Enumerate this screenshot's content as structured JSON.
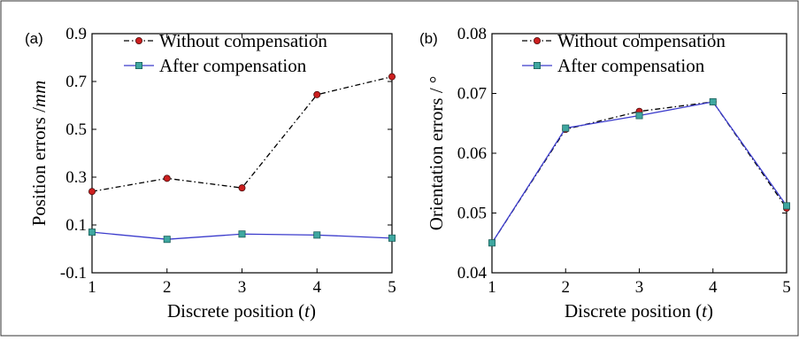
{
  "chart_data": [
    {
      "panel_label": "(a)",
      "type": "line",
      "xlabel_prefix": "Discrete position (",
      "xlabel_var": "t",
      "xlabel_suffix": ")",
      "ylabel_prefix": "Position errors /",
      "ylabel_unit": "mm",
      "xlim": [
        1,
        5
      ],
      "ylim": [
        -0.1,
        0.9
      ],
      "x_ticks": [
        "1",
        "2",
        "3",
        "4",
        "5"
      ],
      "y_ticks": [
        "-0.1",
        "0.1",
        "0.3",
        "0.5",
        "0.7",
        "0.9"
      ],
      "x": [
        1,
        2,
        3,
        4,
        5
      ],
      "grid": false,
      "legend_position": "top",
      "series": [
        {
          "name": "Without compensation",
          "values": [
            0.24,
            0.295,
            0.255,
            0.645,
            0.72
          ],
          "color": "#000000",
          "marker": "circle",
          "marker_color": "#cc1f1f",
          "line_style": "dash-dot"
        },
        {
          "name": "After compensation",
          "values": [
            0.07,
            0.04,
            0.062,
            0.058,
            0.045
          ],
          "color": "#3b3bcc",
          "marker": "square",
          "marker_color": "#3fa7a0",
          "line_style": "solid"
        }
      ]
    },
    {
      "panel_label": "(b)",
      "type": "line",
      "xlabel_prefix": "Discrete position (",
      "xlabel_var": "t",
      "xlabel_suffix": ")",
      "ylabel_prefix": "Orientation errors / °",
      "ylabel_unit": "",
      "xlim": [
        1,
        5
      ],
      "ylim": [
        0.04,
        0.08
      ],
      "x_ticks": [
        "1",
        "2",
        "3",
        "4",
        "5"
      ],
      "y_ticks": [
        "0.04",
        "0.05",
        "0.06",
        "0.07",
        "0.08"
      ],
      "x": [
        1,
        2,
        3,
        4,
        5
      ],
      "grid": false,
      "legend_position": "top",
      "series": [
        {
          "name": "Without compensation",
          "values": [
            0.045,
            0.064,
            0.067,
            0.0686,
            0.0508
          ],
          "color": "#000000",
          "marker": "circle",
          "marker_color": "#cc1f1f",
          "line_style": "dash-dot"
        },
        {
          "name": "After compensation",
          "values": [
            0.045,
            0.0642,
            0.0663,
            0.0686,
            0.0512
          ],
          "color": "#3b3bcc",
          "marker": "square",
          "marker_color": "#3fa7a0",
          "line_style": "solid"
        }
      ]
    }
  ]
}
